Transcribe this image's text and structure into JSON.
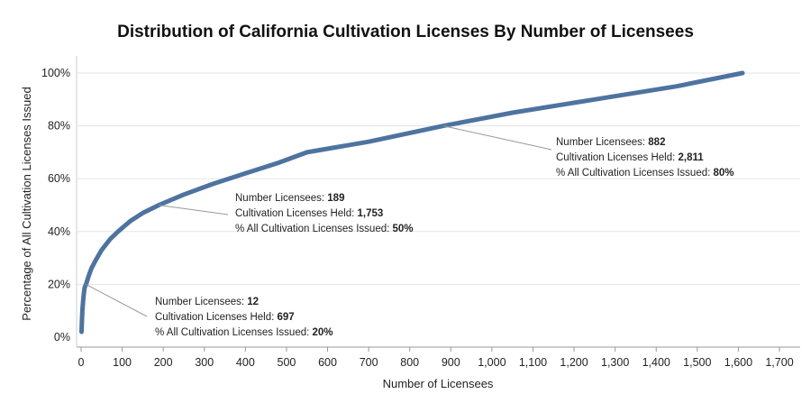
{
  "chart_data": {
    "type": "line",
    "title": "Distribution of California Cultivation Licenses By Number of Licensees",
    "xlabel": "Number of Licensees",
    "ylabel": "Percentage of All Cultivation Licenses Issued",
    "xlim": [
      0,
      1700
    ],
    "ylim": [
      0,
      100
    ],
    "x_ticks": [
      0,
      100,
      200,
      300,
      400,
      500,
      600,
      700,
      800,
      900,
      1000,
      1100,
      1200,
      1300,
      1400,
      1500,
      1600,
      1700
    ],
    "x_tick_labels": [
      "0",
      "100",
      "200",
      "300",
      "400",
      "500",
      "600",
      "700",
      "800",
      "900",
      "1,000",
      "1,100",
      "1,200",
      "1,300",
      "1,400",
      "1,500",
      "1,600",
      "1,700"
    ],
    "y_ticks": [
      0,
      20,
      40,
      60,
      80,
      100
    ],
    "y_tick_labels": [
      "0%",
      "20%",
      "40%",
      "60%",
      "80%",
      "100%"
    ],
    "grid": "horizontal",
    "line_color": "#4e73a0",
    "series": [
      {
        "x": [
          1,
          2,
          3,
          5,
          7,
          9,
          12,
          18,
          25,
          35,
          50,
          70,
          90,
          120,
          150,
          189,
          250,
          320,
          400,
          480,
          550,
          700,
          882,
          1050,
          1250,
          1450,
          1610
        ],
        "values": [
          2,
          6,
          10,
          14,
          17,
          19,
          20,
          23,
          26,
          29,
          33,
          37,
          40,
          44,
          47,
          50,
          54,
          58,
          62,
          66,
          70,
          74,
          80,
          85,
          90,
          95,
          100
        ]
      }
    ],
    "annotations": [
      {
        "x": 12,
        "y": 20,
        "lines": [
          {
            "label": "Number Licensees: ",
            "value": "12"
          },
          {
            "label": "Cultivation Licenses Held: ",
            "value": "697"
          },
          {
            "label": "% All Cultivation Licenses Issued: ",
            "value": "20%"
          }
        ]
      },
      {
        "x": 189,
        "y": 50,
        "lines": [
          {
            "label": "Number Licensees: ",
            "value": "189"
          },
          {
            "label": "Cultivation Licenses Held: ",
            "value": "1,753"
          },
          {
            "label": "% All Cultivation Licenses Issued: ",
            "value": "50%"
          }
        ]
      },
      {
        "x": 882,
        "y": 80,
        "lines": [
          {
            "label": "Number Licensees: ",
            "value": "882"
          },
          {
            "label": "Cultivation Licenses Held: ",
            "value": "2,811"
          },
          {
            "label": "% All Cultivation Licenses Issued: ",
            "value": "80%"
          }
        ]
      }
    ]
  }
}
